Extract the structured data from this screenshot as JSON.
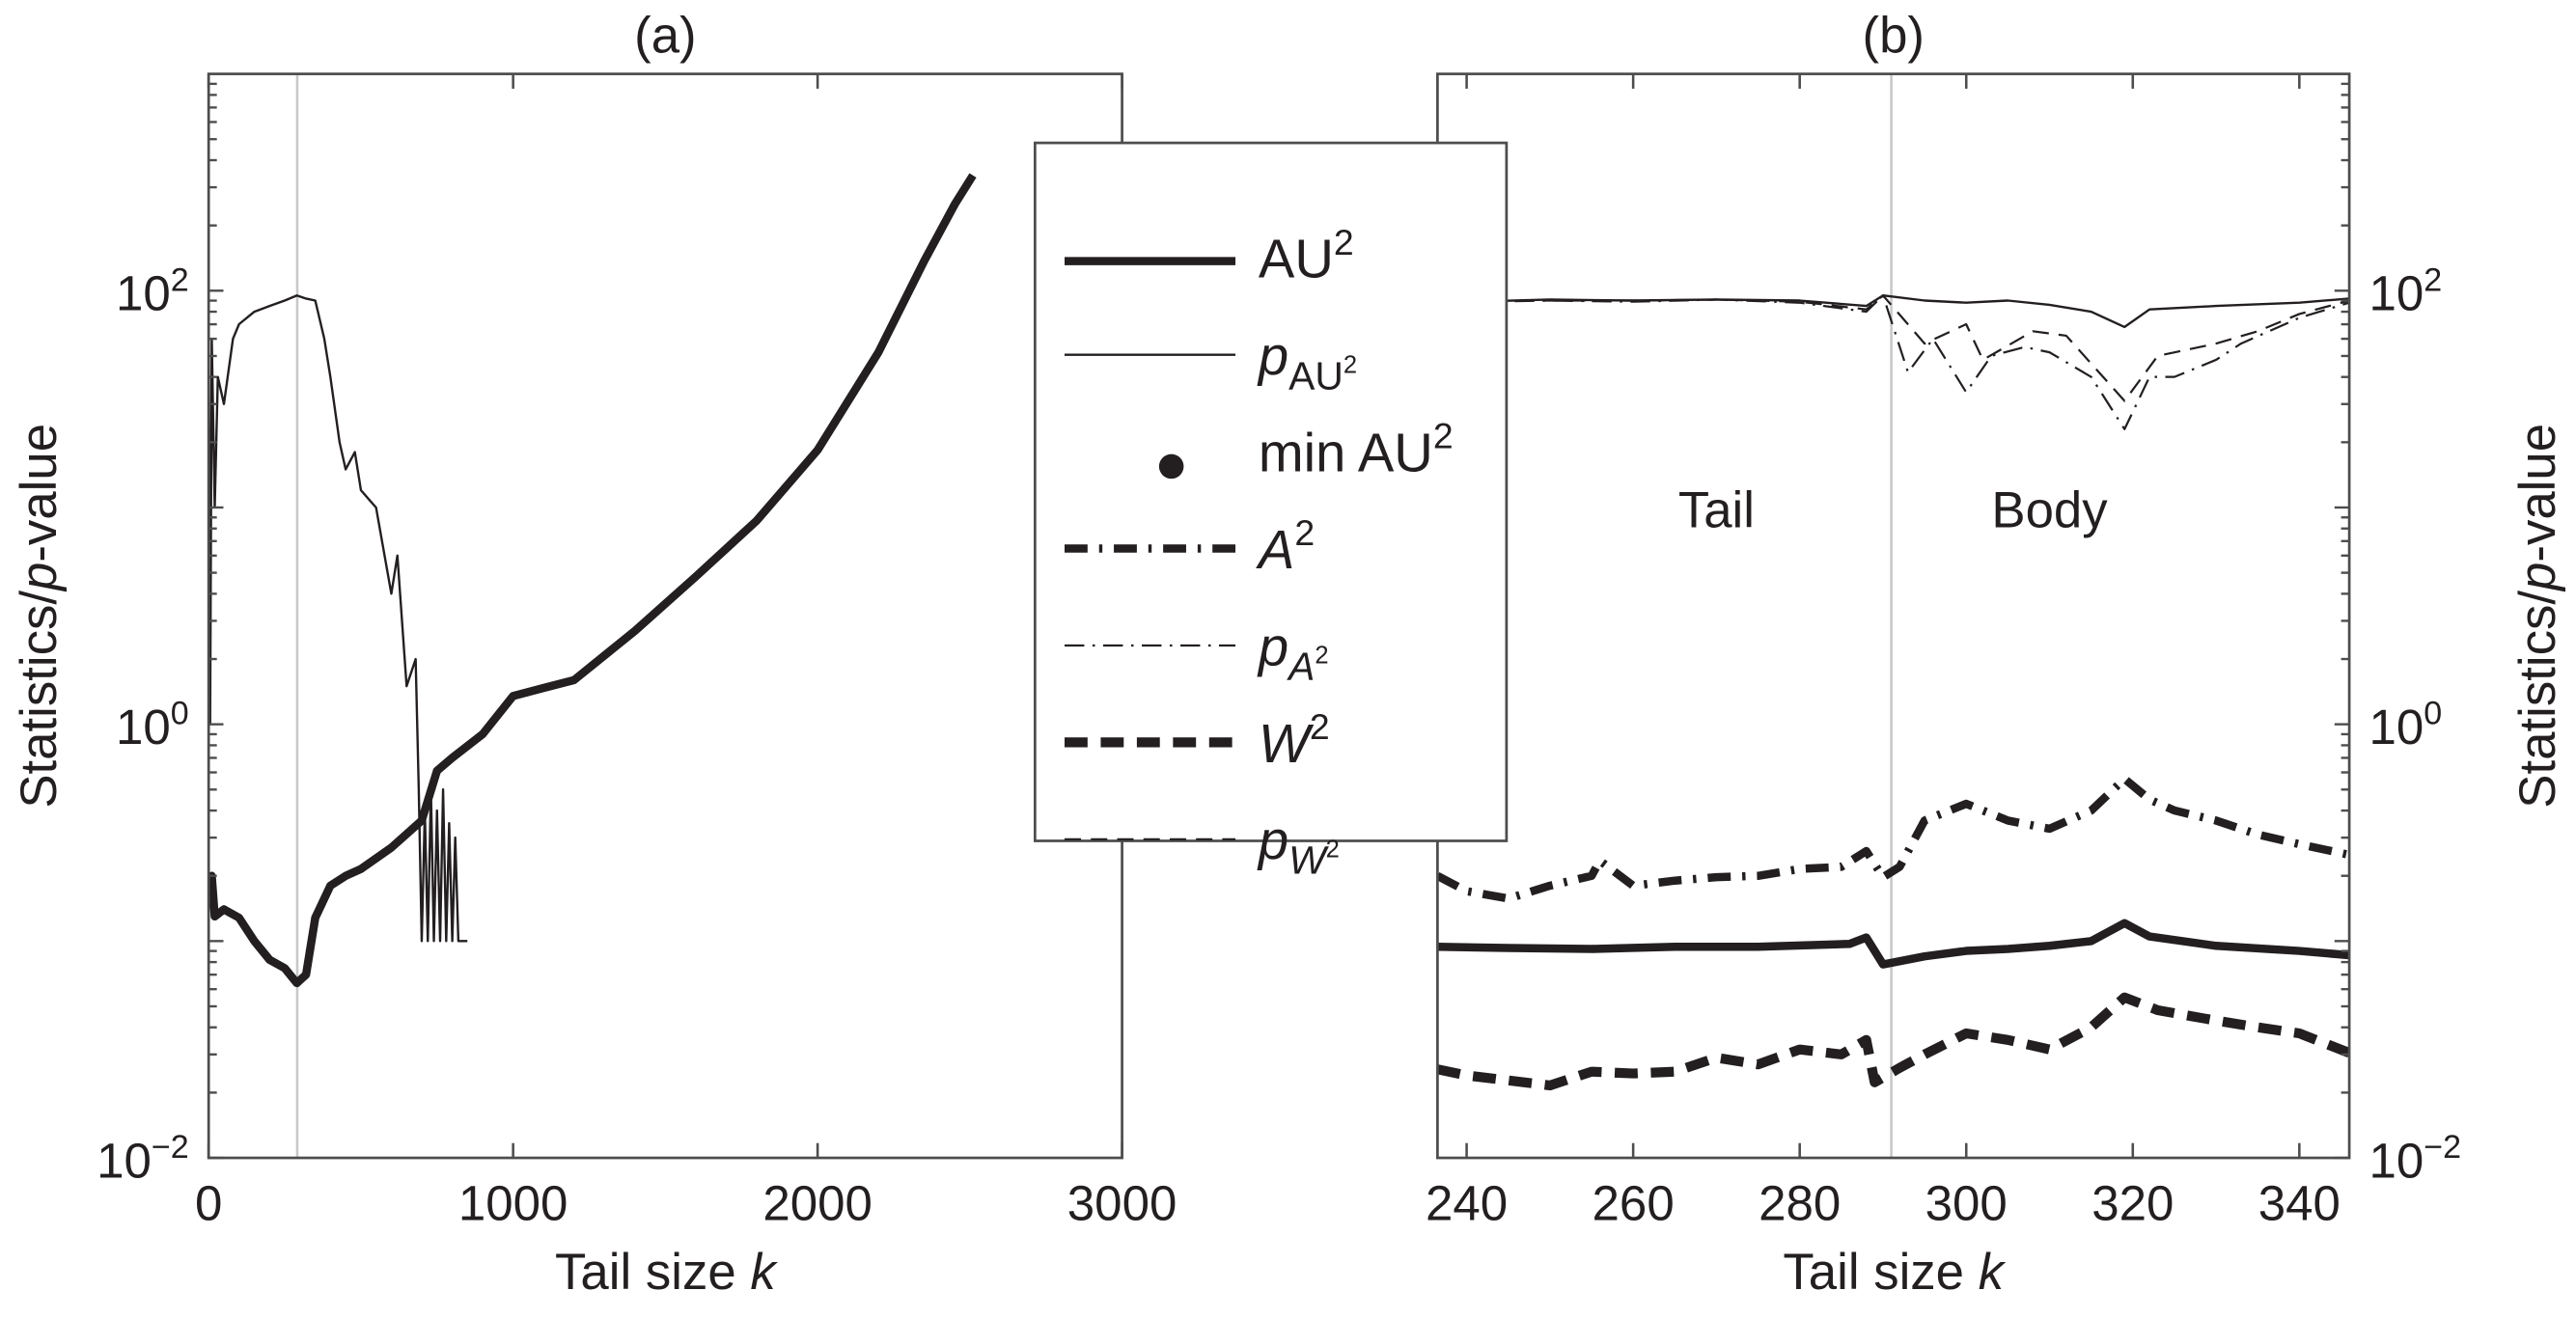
{
  "chart_data": [
    {
      "type": "line",
      "title": "(a)",
      "xlabel": {
        "text": "Tail size ",
        "italic": "k"
      },
      "ylabel": {
        "text": "Statistics/",
        "italic": "p",
        "rest": "-value"
      },
      "xlim": [
        0,
        3000
      ],
      "ylim": [
        0.01,
        1000
      ],
      "yscale": "log",
      "xticks": [
        0,
        1000,
        2000,
        3000
      ],
      "yticks": [
        {
          "base": "10",
          "exp": "−2",
          "value": 0.01
        },
        {
          "base": "10",
          "exp": "0",
          "value": 1
        },
        {
          "base": "10",
          "exp": "2",
          "value": 100
        }
      ],
      "ytick_side": "left",
      "reference_line_k": 291,
      "series": [
        {
          "name": "AU2",
          "style": "thick-solid",
          "x": [
            0,
            10,
            20,
            50,
            100,
            150,
            200,
            250,
            290,
            320,
            350,
            400,
            450,
            500,
            600,
            700,
            750,
            800,
            900,
            1000,
            1100,
            1200,
            1400,
            1600,
            1800,
            2000,
            2200,
            2350,
            2450,
            2510
          ],
          "y": [
            0.15,
            0.2,
            0.13,
            0.14,
            0.128,
            0.1,
            0.082,
            0.075,
            0.064,
            0.07,
            0.128,
            0.18,
            0.2,
            0.215,
            0.27,
            0.36,
            0.61,
            0.7,
            0.9,
            1.35,
            1.47,
            1.6,
            2.7,
            4.8,
            8.7,
            18.4,
            52,
            137,
            250,
            340
          ]
        },
        {
          "name": "pAU2",
          "style": "thin-solid",
          "x": [
            0,
            5,
            10,
            20,
            30,
            50,
            80,
            100,
            150,
            200,
            250,
            290,
            320,
            350,
            380,
            400,
            430,
            450,
            480,
            500,
            550,
            600,
            620,
            650,
            680,
            690,
            700,
            710,
            720,
            730,
            740,
            750,
            760,
            770,
            780,
            790,
            800,
            810,
            820,
            830,
            850
          ],
          "y": [
            80,
            1,
            60,
            10,
            40,
            30,
            60,
            70,
            80,
            85,
            90,
            95,
            92,
            90,
            60,
            40,
            20,
            15,
            18,
            12,
            10,
            4,
            6,
            1.5,
            2,
            0.5,
            0.1,
            0.4,
            0.1,
            0.5,
            0.1,
            0.4,
            0.1,
            0.5,
            0.1,
            0.35,
            0.1,
            0.3,
            0.1,
            0.1,
            0.1
          ]
        }
      ]
    },
    {
      "type": "line",
      "title": "(b)",
      "xlabel": {
        "text": "Tail size ",
        "italic": "k"
      },
      "ylabel": {
        "text": "Statistics/",
        "italic": "p",
        "rest": "-value"
      },
      "xlim": [
        236.5,
        346
      ],
      "ylim": [
        0.01,
        1000
      ],
      "yscale": "log",
      "xticks": [
        240,
        260,
        280,
        300,
        320,
        340
      ],
      "yticks": [
        {
          "base": "10",
          "exp": "−2",
          "value": 0.01
        },
        {
          "base": "10",
          "exp": "0",
          "value": 1
        },
        {
          "base": "10",
          "exp": "2",
          "value": 100
        }
      ],
      "ytick_side": "right",
      "reference_line_k": 291,
      "annotations": [
        {
          "text": "Tail",
          "x": 270,
          "y": 10
        },
        {
          "text": "Body",
          "x": 310,
          "y": 10
        }
      ],
      "series": [
        {
          "name": "pAU2",
          "style": "thin-solid",
          "x": [
            236.5,
            250,
            260,
            270,
            280,
            288,
            290,
            295,
            300,
            305,
            310,
            315,
            319,
            322,
            330,
            340,
            346
          ],
          "y": [
            88,
            91,
            90,
            91,
            90,
            85,
            95,
            90,
            88,
            90,
            86,
            80,
            68,
            82,
            85,
            88,
            92
          ]
        },
        {
          "name": "pA2",
          "style": "thin-dashdot",
          "x": [
            236.5,
            250,
            260,
            270,
            280,
            288,
            290,
            293,
            296,
            300,
            303,
            307,
            310,
            315,
            319,
            322,
            325,
            330,
            333,
            340,
            346
          ],
          "y": [
            88,
            90,
            89,
            91,
            88,
            80,
            95,
            42,
            60,
            34,
            50,
            55,
            52,
            40,
            23,
            40,
            40,
            48,
            57,
            75,
            88
          ]
        },
        {
          "name": "pW2",
          "style": "thin-dashed",
          "x": [
            236.5,
            250,
            260,
            270,
            280,
            288,
            290,
            295,
            300,
            302,
            308,
            312,
            319,
            323,
            330,
            335,
            340,
            346
          ],
          "y": [
            89,
            90,
            90,
            91,
            89,
            82,
            95,
            57,
            70,
            48,
            65,
            62,
            31,
            50,
            57,
            65,
            78,
            90
          ]
        },
        {
          "name": "A2",
          "style": "thick-dashdot",
          "x": [
            236.5,
            240,
            245,
            250,
            255,
            256,
            260,
            265,
            270,
            275,
            280,
            285,
            288,
            290,
            292,
            295,
            300,
            305,
            310,
            315,
            319,
            322,
            325,
            330,
            335,
            340,
            346
          ],
          "y": [
            0.2,
            0.17,
            0.157,
            0.18,
            0.2,
            0.235,
            0.18,
            0.19,
            0.197,
            0.2,
            0.215,
            0.22,
            0.26,
            0.197,
            0.22,
            0.36,
            0.43,
            0.36,
            0.33,
            0.4,
            0.56,
            0.45,
            0.4,
            0.36,
            0.31,
            0.28,
            0.25
          ]
        },
        {
          "name": "AU2",
          "style": "thick-solid",
          "x": [
            236.5,
            245,
            255,
            265,
            275,
            286,
            288,
            290,
            295,
            300,
            305,
            310,
            315,
            319,
            322,
            330,
            340,
            346
          ],
          "y": [
            0.094,
            0.093,
            0.092,
            0.094,
            0.094,
            0.097,
            0.104,
            0.078,
            0.085,
            0.09,
            0.092,
            0.095,
            0.1,
            0.121,
            0.105,
            0.095,
            0.09,
            0.086
          ]
        },
        {
          "name": "W2",
          "style": "thick-dashed",
          "x": [
            236.5,
            240,
            250,
            255,
            260,
            265,
            270,
            275,
            280,
            285,
            288,
            289,
            292,
            295,
            300,
            305,
            310,
            315,
            319,
            323,
            330,
            335,
            340,
            346
          ],
          "y": [
            0.0256,
            0.024,
            0.0216,
            0.025,
            0.0245,
            0.025,
            0.029,
            0.027,
            0.0316,
            0.03,
            0.035,
            0.0223,
            0.026,
            0.03,
            0.0375,
            0.035,
            0.0316,
            0.04,
            0.055,
            0.048,
            0.043,
            0.04,
            0.0375,
            0.0305
          ]
        }
      ]
    }
  ],
  "legend": {
    "placement": "center-between-panels",
    "entries": [
      {
        "key": "AU2",
        "text": "AU",
        "sup": "2",
        "style": "thick-solid"
      },
      {
        "key": "pAU2",
        "text": "p",
        "sub": "AU",
        "sub_sup": "2",
        "style": "thin-solid"
      },
      {
        "key": "minAU2",
        "text": "min AU",
        "sup": "2",
        "style": "dot"
      },
      {
        "key": "A2",
        "text": "A",
        "sup": "2",
        "italic": true,
        "style": "thick-dashdot"
      },
      {
        "key": "pA2",
        "text": "p",
        "sub": "A",
        "sub_italic": true,
        "sub_sup": "2",
        "style": "thin-dashdot"
      },
      {
        "key": "W2",
        "text": "W",
        "sup": "2",
        "italic": true,
        "style": "thick-dashed"
      },
      {
        "key": "pW2",
        "text": "p",
        "sub": "W",
        "sub_italic": true,
        "sub_sup": "2",
        "style": "thin-dashed"
      }
    ]
  },
  "colors": {
    "line": "#231f20",
    "axis": "#4d4d4d",
    "reference_line": "#c8c8c8"
  }
}
